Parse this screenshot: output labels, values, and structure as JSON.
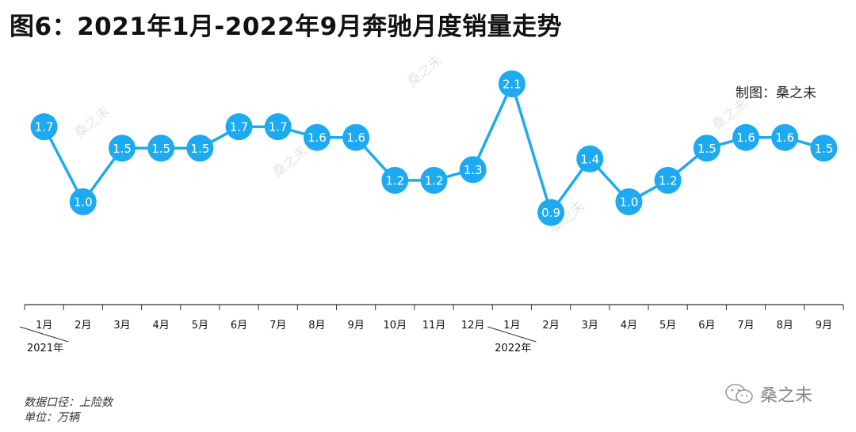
{
  "title": "图6：2021年1月-2022年9月奔驰月度销量走势",
  "credit": "制图：桑之未",
  "footnotes": [
    "数据口径：上险数",
    "单位：万辆"
  ],
  "watermark_text": "桑之未",
  "brand": {
    "icon": "wechat-icon",
    "text": "桑之未"
  },
  "colors": {
    "accent": "#1eaaf1",
    "axis": "#333333"
  },
  "chart_data": {
    "type": "line",
    "x": [
      "1月",
      "2月",
      "3月",
      "4月",
      "5月",
      "6月",
      "7月",
      "8月",
      "9月",
      "10月",
      "11月",
      "12月",
      "1月",
      "2月",
      "3月",
      "4月",
      "5月",
      "6月",
      "7月",
      "8月",
      "9月"
    ],
    "year_labels": [
      {
        "label": "2021年",
        "start_index": 0
      },
      {
        "label": "2022年",
        "start_index": 12
      }
    ],
    "series": [
      {
        "values": [
          1.7,
          1.0,
          1.5,
          1.5,
          1.5,
          1.7,
          1.7,
          1.6,
          1.6,
          1.2,
          1.2,
          1.3,
          2.1,
          0.9,
          1.4,
          1.0,
          1.2,
          1.5,
          1.6,
          1.6,
          1.5
        ]
      }
    ],
    "data_labels": [
      "1.7",
      "1.0",
      "1.5",
      "1.5",
      "1.5",
      "1.7",
      "1.7",
      "1.6",
      "1.6",
      "1.2",
      "1.2",
      "1.3",
      "2.1",
      "0.9",
      "1.4",
      "1.0",
      "1.2",
      "1.5",
      "1.6",
      "1.6",
      "1.5"
    ],
    "title": "图6：2021年1月-2022年9月奔驰月度销量走势",
    "xlabel": "",
    "ylabel": "",
    "ylim": [
      0,
      2.5
    ],
    "grid": false,
    "legend": "none"
  }
}
